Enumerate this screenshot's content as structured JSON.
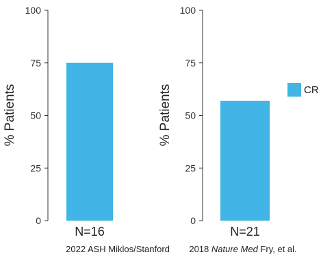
{
  "chart_data": [
    {
      "type": "bar",
      "ylabel": "% Patients",
      "ylim": [
        0,
        100
      ],
      "yticks": [
        0,
        25,
        50,
        75,
        100
      ],
      "categories": [
        "N=16"
      ],
      "series": [
        {
          "name": "CR",
          "values": [
            75
          ]
        }
      ],
      "source": {
        "prefix": "2022 ASH Miklos/Stanford",
        "italic": "",
        "suffix": ""
      }
    },
    {
      "type": "bar",
      "ylabel": "% Patients",
      "ylim": [
        0,
        100
      ],
      "yticks": [
        0,
        25,
        50,
        75,
        100
      ],
      "categories": [
        "N=21"
      ],
      "series": [
        {
          "name": "CR",
          "values": [
            57
          ]
        }
      ],
      "source": {
        "prefix": "2018 ",
        "italic": "Nature Med",
        "suffix": " Fry, et al."
      }
    }
  ],
  "legend": {
    "position": "right",
    "items": [
      {
        "label": "CR",
        "color": "#41b6e6"
      }
    ]
  },
  "colors": {
    "bar": "#41b6e6",
    "axis": "#333333",
    "text": "#222222"
  }
}
